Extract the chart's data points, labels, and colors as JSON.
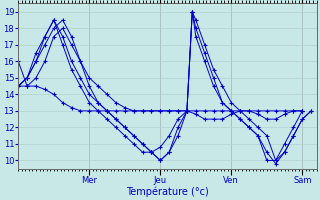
{
  "background_color": "#c8e8e8",
  "grid_color": "#b5d0d0",
  "line_color": "#0000cc",
  "xlabel": "Température (°c)",
  "ylim": [
    9.5,
    19.5
  ],
  "yticks": [
    10,
    11,
    12,
    13,
    14,
    15,
    16,
    17,
    18,
    19
  ],
  "day_labels": [
    "Mer",
    "Jeu",
    "Ven",
    "Sam"
  ],
  "day_positions": [
    40,
    80,
    120,
    160
  ],
  "xlim": [
    0,
    168
  ],
  "series": [
    [
      0,
      14.5,
      5,
      14.5,
      10,
      15.0,
      15,
      16.0,
      20,
      17.5,
      25,
      18.0,
      30,
      17.0,
      35,
      16.0,
      40,
      15.0,
      45,
      14.5,
      50,
      14.0,
      55,
      13.5,
      60,
      13.2,
      65,
      13.0,
      70,
      13.0,
      75,
      13.0,
      80,
      13.0,
      85,
      13.0,
      90,
      13.0,
      95,
      13.0,
      100,
      12.8,
      105,
      12.5,
      110,
      12.5,
      115,
      12.5,
      120,
      12.8,
      125,
      13.0,
      130,
      13.0,
      135,
      13.0,
      140,
      13.0,
      145,
      13.0,
      150,
      13.0,
      155,
      13.0,
      160,
      13.0
    ],
    [
      0,
      14.5,
      5,
      15.0,
      10,
      16.0,
      15,
      17.0,
      20,
      18.0,
      25,
      18.5,
      30,
      17.5,
      35,
      16.0,
      40,
      14.5,
      45,
      13.5,
      50,
      13.0,
      55,
      12.5,
      60,
      12.0,
      65,
      11.5,
      70,
      11.0,
      75,
      10.5,
      80,
      10.0,
      85,
      10.5,
      90,
      11.5,
      95,
      13.0,
      98,
      19.0,
      100,
      18.5,
      105,
      17.0,
      110,
      15.5,
      115,
      14.5,
      120,
      13.5,
      125,
      13.0,
      130,
      12.5,
      135,
      12.0,
      140,
      11.5,
      145,
      10.0,
      150,
      10.5,
      155,
      11.5,
      160,
      12.5,
      165,
      13.0
    ],
    [
      0,
      14.5,
      5,
      15.0,
      10,
      16.0,
      15,
      17.5,
      20,
      18.5,
      25,
      17.5,
      30,
      16.0,
      35,
      15.0,
      40,
      14.0,
      45,
      13.5,
      50,
      13.0,
      55,
      12.5,
      60,
      12.0,
      65,
      11.5,
      70,
      11.0,
      75,
      10.5,
      80,
      10.0,
      85,
      10.5,
      90,
      12.0,
      95,
      13.0,
      98,
      19.0,
      100,
      18.0,
      105,
      16.5,
      110,
      15.0,
      115,
      13.5,
      120,
      13.0,
      125,
      12.5,
      130,
      12.0,
      135,
      11.5,
      140,
      10.5,
      145,
      9.8,
      150,
      10.5,
      155,
      11.5,
      160,
      12.5,
      165,
      13.0
    ],
    [
      0,
      14.5,
      5,
      15.0,
      10,
      16.5,
      15,
      17.5,
      20,
      18.5,
      25,
      17.0,
      30,
      15.5,
      35,
      14.5,
      40,
      13.5,
      45,
      13.0,
      50,
      12.5,
      55,
      12.0,
      60,
      11.5,
      65,
      11.0,
      70,
      10.5,
      75,
      10.5,
      80,
      10.8,
      85,
      11.5,
      90,
      12.5,
      95,
      13.0,
      98,
      19.0,
      100,
      17.5,
      105,
      16.0,
      110,
      14.5,
      115,
      13.5,
      120,
      13.0,
      125,
      12.5,
      130,
      12.0,
      135,
      11.5,
      140,
      10.0,
      145,
      10.0,
      150,
      11.0,
      155,
      12.0,
      160,
      13.0
    ],
    [
      0,
      16.0,
      5,
      14.5,
      10,
      14.5,
      15,
      14.3,
      20,
      14.0,
      25,
      13.5,
      30,
      13.2,
      35,
      13.0,
      40,
      13.0,
      45,
      13.0,
      50,
      13.0,
      55,
      13.0,
      60,
      13.0,
      65,
      13.0,
      70,
      13.0,
      75,
      13.0,
      80,
      13.0,
      85,
      13.0,
      90,
      13.0,
      95,
      13.0,
      100,
      13.0,
      105,
      13.0,
      110,
      13.0,
      115,
      13.0,
      120,
      13.0,
      125,
      13.0,
      130,
      13.0,
      135,
      12.8,
      140,
      12.5,
      145,
      12.5,
      150,
      12.8,
      155,
      13.0,
      160,
      13.0
    ]
  ]
}
